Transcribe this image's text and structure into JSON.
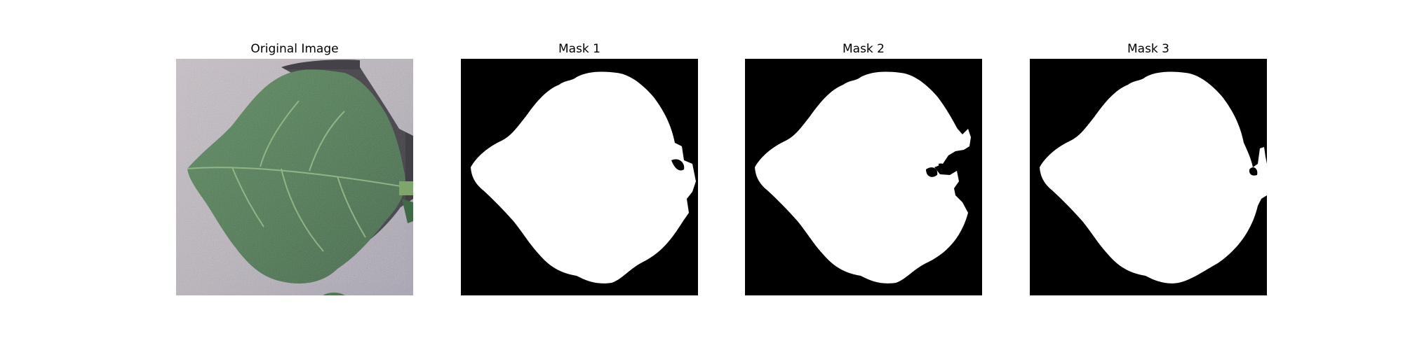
{
  "panels": [
    {
      "title": "Original Image",
      "content": "leaf-photo"
    },
    {
      "title": "Mask 1",
      "content": "binary-mask"
    },
    {
      "title": "Mask 2",
      "content": "binary-mask"
    },
    {
      "title": "Mask 3",
      "content": "binary-mask"
    }
  ],
  "colors": {
    "background": "#ffffff",
    "mask_foreground": "#ffffff",
    "mask_background": "#000000",
    "leaf_green": "#4f7f52",
    "leaf_dark": "#3b6440",
    "backdrop_grey": "#bcb6bd",
    "shadow": "#2c2c30"
  }
}
